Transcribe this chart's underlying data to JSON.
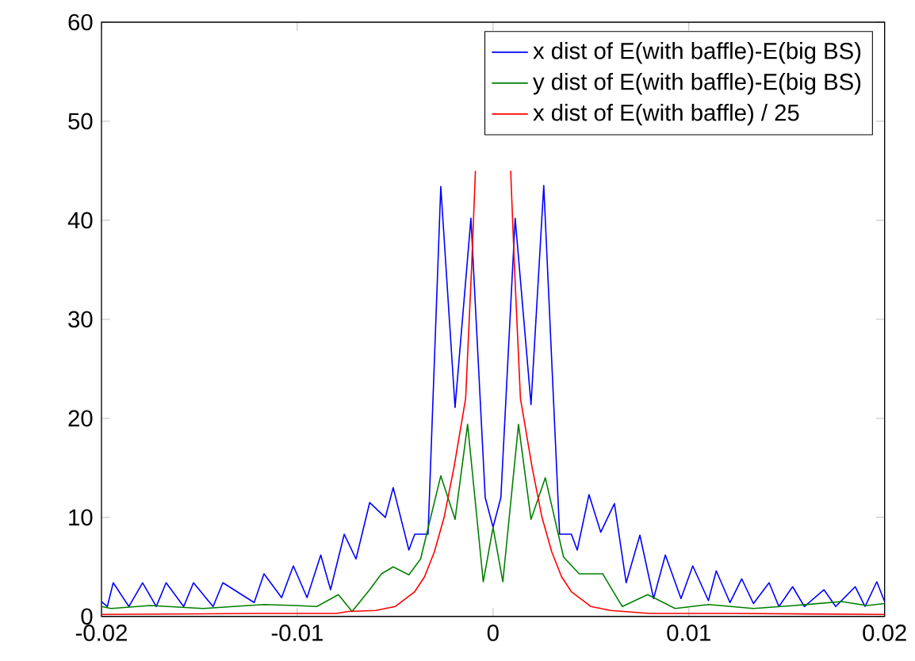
{
  "chart_data": {
    "type": "line",
    "xlim": [
      -0.02,
      0.02
    ],
    "ylim": [
      0,
      60
    ],
    "xticks": [
      -0.02,
      -0.01,
      0,
      0.01,
      0.02
    ],
    "yticks": [
      0,
      10,
      20,
      30,
      40,
      50,
      60
    ],
    "legend": "top right",
    "grid": false,
    "marker": "none",
    "line_style": "solid",
    "series": [
      {
        "name": "x dist of E(with baffle)-E(big BS)",
        "color": "#0000ff",
        "x": [
          -0.02,
          -0.0197,
          -0.0194,
          -0.0186,
          -0.0179,
          -0.0172,
          -0.0167,
          -0.0158,
          -0.0153,
          -0.0143,
          -0.0138,
          -0.0122,
          -0.0117,
          -0.0108,
          -0.0102,
          -0.0095,
          -0.0088,
          -0.0083,
          -0.0076,
          -0.007,
          -0.0063,
          -0.0055,
          -0.0051,
          -0.0043,
          -0.004,
          -0.00332,
          -0.00267,
          -0.00194,
          -0.00113,
          -0.0004,
          0,
          0.0004,
          0.00113,
          0.00194,
          0.00259,
          0.0034,
          0.004,
          0.0043,
          0.0049,
          0.0055,
          0.0062,
          0.0068,
          0.0075,
          0.0082,
          0.0088,
          0.0096,
          0.0102,
          0.011,
          0.0114,
          0.0121,
          0.0127,
          0.0133,
          0.0141,
          0.0146,
          0.0153,
          0.0159,
          0.0169,
          0.0175,
          0.0185,
          0.019,
          0.0196,
          0.02
        ],
        "values": [
          1.5,
          1,
          3.4,
          1,
          3.4,
          1,
          3.4,
          1,
          3.4,
          1,
          3.4,
          1.4,
          4.3,
          1.9,
          5.1,
          1.9,
          6.2,
          2.7,
          8.3,
          5.8,
          11.5,
          10,
          13,
          6.7,
          8.3,
          8.3,
          43.4,
          21.1,
          40.2,
          12,
          9,
          12,
          40.2,
          21.4,
          43.5,
          8.3,
          8.3,
          6.7,
          12.3,
          8.5,
          11.4,
          3.4,
          8.2,
          1.8,
          6.2,
          1.8,
          5.1,
          1.6,
          4.6,
          1.4,
          3.8,
          1.3,
          3.4,
          1,
          3,
          1,
          2.7,
          1,
          3,
          1,
          3.5,
          1.5
        ]
      },
      {
        "name": "y dist of E(with baffle)-E(big BS)",
        "color": "#008000",
        "x": [
          -0.02,
          -0.0195,
          -0.0175,
          -0.0148,
          -0.0117,
          -0.0101,
          -0.009,
          -0.0079,
          -0.0072,
          -0.0063,
          -0.0057,
          -0.0051,
          -0.0043,
          -0.0037,
          -0.00267,
          -0.00194,
          -0.0013,
          -0.0005,
          0,
          0.0005,
          0.0013,
          0.00194,
          0.00267,
          0.0036,
          0.0044,
          0.0056,
          0.0066,
          0.0079,
          0.0093,
          0.011,
          0.0133,
          0.0154,
          0.0178,
          0.0191,
          0.02
        ],
        "values": [
          1,
          0.8,
          1.1,
          0.8,
          1.2,
          1.1,
          1,
          2.2,
          0.5,
          2.7,
          4.3,
          5,
          4.2,
          5.8,
          14.2,
          9.8,
          19.4,
          3.5,
          9,
          3.5,
          19.4,
          9.8,
          14,
          6,
          4.3,
          4.3,
          1,
          2.2,
          0.8,
          1.2,
          0.8,
          1.1,
          1.5,
          1.1,
          1.3
        ]
      },
      {
        "name": "x dist of E(with baffle) / 25",
        "color": "#ff0000",
        "x": [
          -0.02,
          -0.012,
          -0.008,
          -0.0074,
          -0.006,
          -0.005,
          -0.004,
          -0.0035,
          -0.003,
          -0.0025,
          -0.002,
          -0.0014,
          -0.0011,
          -0.0009,
          0,
          0.0009,
          0.0011,
          0.0014,
          0.002,
          0.0025,
          0.003,
          0.0035,
          0.004,
          0.005,
          0.006,
          0.008,
          0.012,
          0.02
        ],
        "values": [
          0.2,
          0.3,
          0.3,
          0.5,
          0.6,
          1.0,
          2.5,
          4,
          6.5,
          10,
          15,
          22,
          35,
          45,
          null,
          45,
          35,
          22,
          15,
          10,
          6.5,
          4,
          2.5,
          1.0,
          0.6,
          0.3,
          0.3,
          0.2
        ]
      }
    ]
  }
}
